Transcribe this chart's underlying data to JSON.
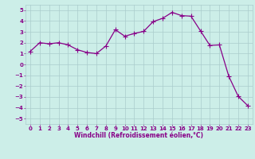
{
  "x": [
    0,
    1,
    2,
    3,
    4,
    5,
    6,
    7,
    8,
    9,
    10,
    11,
    12,
    13,
    14,
    15,
    16,
    17,
    18,
    19,
    20,
    21,
    22,
    23
  ],
  "y": [
    1.2,
    2.0,
    1.9,
    2.0,
    1.8,
    1.35,
    1.1,
    1.0,
    1.7,
    3.2,
    2.6,
    2.85,
    3.05,
    3.95,
    4.25,
    4.8,
    4.5,
    4.45,
    3.1,
    1.75,
    1.8,
    -1.1,
    -2.95,
    -3.8
  ],
  "line_color": "#880088",
  "marker_color": "#880088",
  "bg_color": "#cceee8",
  "grid_color": "#aacccc",
  "xlabel": "Windchill (Refroidissement éolien,°C)",
  "ylim": [
    -5.5,
    5.5
  ],
  "xlim": [
    -0.5,
    23.5
  ],
  "yticks": [
    -5,
    -4,
    -3,
    -2,
    -1,
    0,
    1,
    2,
    3,
    4,
    5
  ],
  "xticks": [
    0,
    1,
    2,
    3,
    4,
    5,
    6,
    7,
    8,
    9,
    10,
    11,
    12,
    13,
    14,
    15,
    16,
    17,
    18,
    19,
    20,
    21,
    22,
    23
  ],
  "font_color": "#880088",
  "tick_fontsize": 5,
  "xlabel_fontsize": 5.5,
  "marker_size": 2.5,
  "line_width": 0.9
}
